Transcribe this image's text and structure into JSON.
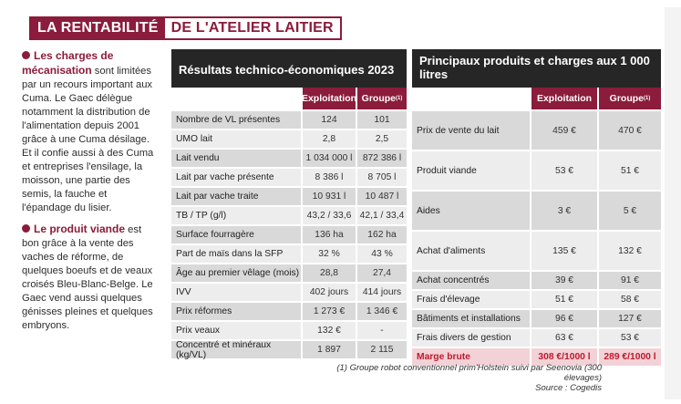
{
  "title": {
    "part1": "LA RENTABILITÉ",
    "part2": "DE L'ATELIER LAITIER"
  },
  "left_text": [
    {
      "lead": "Les charges de mécanisation",
      "body": " sont limitées par un recours important aux Cuma. Le Gaec délègue notamment la distribution de l'alimentation depuis 2001 grâce à une Cuma désilage. Et il confie aussi à des Cuma et entreprises l'ensilage, la moisson, une partie des semis, la fauche et l'épandage du lisier."
    },
    {
      "lead": "Le produit viande",
      "body": " est bon grâce à la vente des vaches de réforme, de quelques boeufs et de veaux croisés Bleu-Blanc-Belge. Le Gaec vend aussi quelques génisses pleines et quelques embryons."
    }
  ],
  "table1": {
    "title": "Résultats technico-économiques 2023",
    "col1": "Exploitation",
    "col2": "Groupe",
    "col2_sup": "(1)",
    "rows": [
      {
        "label": "Nombre de VL présentes",
        "v1": "124",
        "v2": "101"
      },
      {
        "label": "UMO lait",
        "v1": "2,8",
        "v2": "2,5"
      },
      {
        "label": "Lait vendu",
        "v1": "1 034 000 l",
        "v2": "872 386 l"
      },
      {
        "label": "Lait par vache présente",
        "v1": "8 386 l",
        "v2": "8 705 l"
      },
      {
        "label": "Lait par vache traite",
        "v1": "10 931 l",
        "v2": "10 487 l"
      },
      {
        "label": "TB / TP (g/l)",
        "v1": "43,2 / 33,6",
        "v2": "42,1 / 33,4"
      },
      {
        "label": "Surface fourragère",
        "v1": "136 ha",
        "v2": "162 ha"
      },
      {
        "label": "Part de maïs dans la SFP",
        "v1": "32 %",
        "v2": "43 %"
      },
      {
        "label": "Âge au premier vêlage (mois)",
        "v1": "28,8",
        "v2": "27,4"
      },
      {
        "label": "IVV",
        "v1": "402 jours",
        "v2": "414 jours"
      },
      {
        "label": "Prix réformes",
        "v1": "1 273 €",
        "v2": "1 346 €"
      },
      {
        "label": "Prix veaux",
        "v1": "132 €",
        "v2": "-"
      },
      {
        "label": "Concentré et minéraux (kg/VL)",
        "v1": "1 897",
        "v2": "2 115"
      }
    ]
  },
  "table2": {
    "title": "Principaux produits et charges aux 1 000 litres",
    "col1": "Exploitation",
    "col2": "Groupe",
    "col2_sup": "(1)",
    "rows": [
      {
        "label": "Prix de vente du lait",
        "v1": "459 €",
        "v2": "470 €"
      },
      {
        "label": "Produit viande",
        "v1": "53 €",
        "v2": "51 €"
      },
      {
        "label": "Aides",
        "v1": "3 €",
        "v2": "5 €"
      },
      {
        "label": "Achat d'aliments",
        "v1": "135 €",
        "v2": "132 €"
      },
      {
        "label": "Achat concentrés",
        "v1": "39 €",
        "v2": "91 €"
      },
      {
        "label": "Frais d'élevage",
        "v1": "51 €",
        "v2": "58 €"
      },
      {
        "label": "Bâtiments et installations",
        "v1": "96 €",
        "v2": "127 €"
      },
      {
        "label": "Frais divers de gestion",
        "v1": "63 €",
        "v2": "53 €"
      },
      {
        "label": "Marge brute",
        "v1": "308 €/1000 l",
        "v2": "289 €/1000 l"
      }
    ]
  },
  "footnote": {
    "line1": "(1) Groupe robot conventionnel prim'Holstein suivi par Seenovia (300 élevages)",
    "line2": "Source : Cogedis"
  },
  "colors": {
    "accent": "#8b1c3b",
    "header_dark": "#262626",
    "marge_red": "#c0182c"
  }
}
